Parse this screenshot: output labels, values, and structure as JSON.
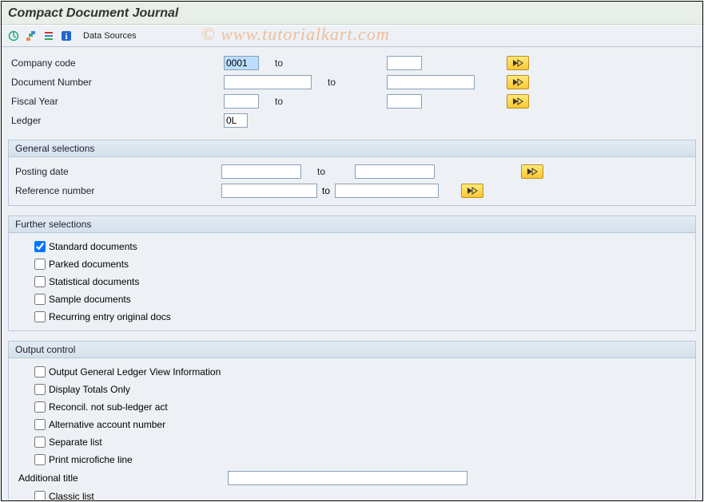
{
  "title": "Compact Document Journal",
  "watermark": "©  www.tutorialkart.com",
  "toolbar": {
    "data_sources": "Data Sources"
  },
  "basic": {
    "company_code": {
      "label": "Company code",
      "from": "0001",
      "to": "",
      "to_label": "to"
    },
    "document_number": {
      "label": "Document Number",
      "from": "",
      "to": "",
      "to_label": "to"
    },
    "fiscal_year": {
      "label": "Fiscal Year",
      "from": "",
      "to": "",
      "to_label": "to"
    },
    "ledger": {
      "label": "Ledger",
      "value": "0L"
    }
  },
  "general_selections": {
    "title": "General selections",
    "posting_date": {
      "label": "Posting date",
      "from": "",
      "to": "",
      "to_label": "to"
    },
    "reference_number": {
      "label": "Reference number",
      "from": "",
      "to": "",
      "to_label": "to"
    }
  },
  "further_selections": {
    "title": "Further selections",
    "items": [
      {
        "label": "Standard documents",
        "checked": true
      },
      {
        "label": "Parked documents",
        "checked": false
      },
      {
        "label": "Statistical documents",
        "checked": false
      },
      {
        "label": "Sample documents",
        "checked": false
      },
      {
        "label": "Recurring entry original docs",
        "checked": false
      }
    ]
  },
  "output_control": {
    "title": "Output control",
    "items_top": [
      {
        "label": "Output General Ledger View Information",
        "checked": false
      },
      {
        "label": "Display Totals Only",
        "checked": false
      },
      {
        "label": "Reconcil. not sub-ledger act",
        "checked": false
      },
      {
        "label": "Alternative account number",
        "checked": false
      },
      {
        "label": "Separate list",
        "checked": false
      },
      {
        "label": "Print microfiche line",
        "checked": false
      }
    ],
    "additional_title": {
      "label": "Additional title",
      "value": ""
    },
    "items_bottom": [
      {
        "label": "Classic list",
        "checked": false
      }
    ]
  },
  "colors": {
    "page_bg": "#EDF1F5",
    "title_bg": "#E8EEE8",
    "group_header_top": "#E4ECF4",
    "group_header_bottom": "#D4E0EC",
    "border": "#b8c8d8",
    "input_border": "#8aa0b8",
    "highlight": "#BBDDFF",
    "btn_top": "#FFE97A",
    "btn_bottom": "#FFC733",
    "btn_border": "#b89020"
  }
}
